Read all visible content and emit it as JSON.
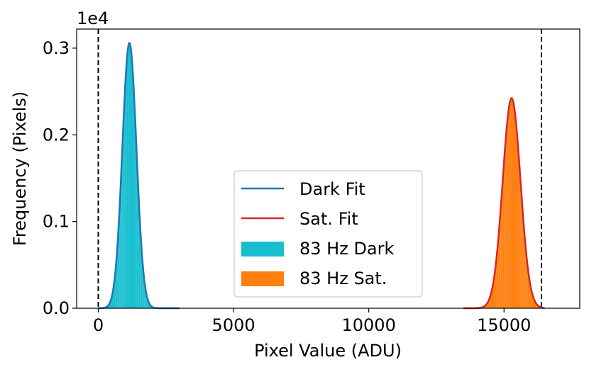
{
  "chart_data": {
    "type": "bar",
    "xlabel": "Pixel Value (ADU)",
    "ylabel": "Frequency (Pixels)",
    "y_offset_label": "1e4",
    "xlim": [
      -800,
      17800
    ],
    "ylim": [
      0,
      3220
    ],
    "x_ticks": [
      0,
      5000,
      10000,
      15000
    ],
    "x_tick_labels": [
      "0",
      "5000",
      "10000",
      "15000"
    ],
    "y_ticks": [
      0,
      1000,
      2000,
      3000
    ],
    "y_tick_labels": [
      "0.0",
      "0.1",
      "0.2",
      "0.3"
    ],
    "grid": false,
    "legend_position": "lower-center",
    "vlines": [
      0,
      16383
    ],
    "series": [
      {
        "name": "Dark Fit",
        "kind": "line",
        "color": "#1f77b4",
        "peak_x": 1150,
        "peak_y": 3060,
        "sigma": 260,
        "range": [
          0,
          3000
        ]
      },
      {
        "name": "Sat. Fit",
        "kind": "line",
        "color": "#d62728",
        "peak_x": 15280,
        "peak_y": 2420,
        "sigma": 330,
        "range": [
          13500,
          16500
        ]
      },
      {
        "name": "83 Hz Dark",
        "kind": "histogram",
        "color": "#17becf",
        "peak_x": 1150,
        "peak_y": 3060,
        "sigma": 260,
        "bin_width": 40,
        "range": [
          300,
          2600
        ]
      },
      {
        "name": "83 Hz Sat.",
        "kind": "histogram",
        "color": "#ff7f0e",
        "peak_x": 15280,
        "peak_y": 2440,
        "sigma": 330,
        "bin_width": 40,
        "range": [
          14200,
          16420
        ]
      }
    ]
  }
}
